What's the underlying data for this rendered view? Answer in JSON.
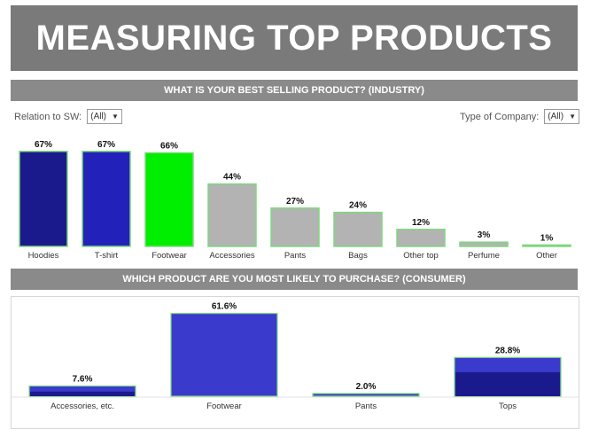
{
  "page": {
    "title": "MEASURING TOP PRODUCTS"
  },
  "filters": {
    "relation": {
      "label": "Relation to SW:",
      "value": "(All)"
    },
    "company": {
      "label": "Type of Company:",
      "value": "(All)"
    }
  },
  "chart_data": [
    {
      "type": "bar",
      "title": "WHAT IS YOUR BEST SELLING PRODUCT? (INDUSTRY)",
      "categories": [
        "Hoodies",
        "T-shirt",
        "Footwear",
        "Accessories",
        "Pants",
        "Bags",
        "Other top",
        "Perfume",
        "Other"
      ],
      "values": [
        67,
        67,
        66,
        44,
        27,
        24,
        12,
        3,
        1
      ],
      "value_labels": [
        "67%",
        "67%",
        "66%",
        "44%",
        "27%",
        "24%",
        "12%",
        "3%",
        "1%"
      ],
      "unit": "%",
      "ylim": [
        0,
        70
      ],
      "colors": [
        "#1a1a8c",
        "#2222bb",
        "#00ee00",
        "#b3b3b3",
        "#b3b3b3",
        "#b3b3b3",
        "#b3b3b3",
        "#b3b3b3",
        "#b3b3b3"
      ],
      "bar_border": "#7ed87e"
    },
    {
      "type": "bar",
      "title": "WHICH PRODUCT ARE YOU MOST LIKELY TO PURCHASE? (CONSUMER)",
      "categories": [
        "Accessories, etc.",
        "Footwear",
        "Pants",
        "Tops"
      ],
      "values": [
        7.6,
        61.6,
        2.0,
        28.8
      ],
      "value_labels": [
        "7.6%",
        "61.6%",
        "2.0%",
        "28.8%"
      ],
      "unit": "%",
      "ylim": [
        0,
        62
      ],
      "colors": [
        "#3a3acc",
        "#3a3acc",
        "#3a3acc",
        "#3a3acc"
      ],
      "dark_color": "#1a1a8c",
      "bar_border": "#7ed87e"
    }
  ]
}
